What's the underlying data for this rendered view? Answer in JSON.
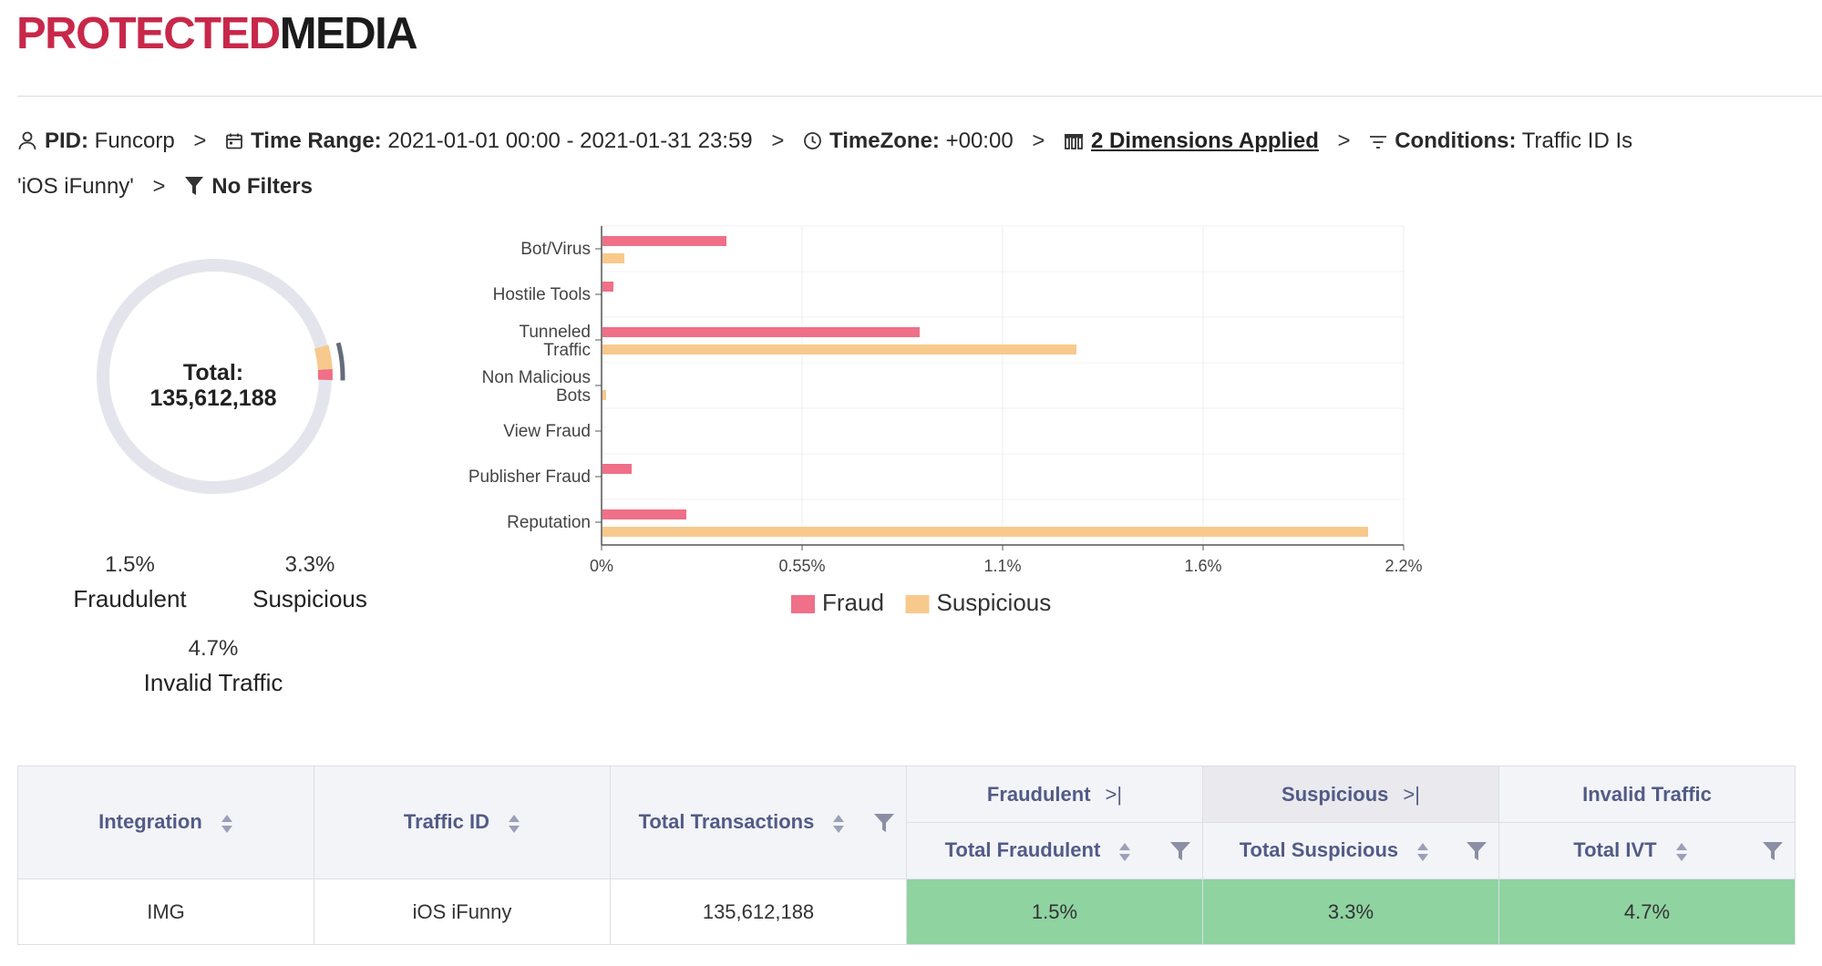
{
  "header": {
    "logo_part1": "PROTECTED",
    "logo_part2": "MEDIA"
  },
  "breadcrumb": {
    "pid_label": "PID:",
    "pid_value": "Funcorp",
    "time_label": "Time Range:",
    "time_value": "2021-01-01 00:00 - 2021-01-31 23:59",
    "tz_label": "TimeZone:",
    "tz_value": "+00:00",
    "dimensions": "2 Dimensions Applied",
    "conditions_label": "Conditions:",
    "conditions_value": "Traffic ID Is 'iOS iFunny'",
    "filters": "No Filters",
    "separator": ">"
  },
  "donut": {
    "total_label": "Total:",
    "total_value": "135,612,188",
    "fraudulent_pct": "1.5%",
    "fraudulent_label": "Fraudulent",
    "suspicious_pct": "3.3%",
    "suspicious_label": "Suspicious",
    "ivt_pct": "4.7%",
    "ivt_label": "Invalid Traffic",
    "fraud_fraction": 0.015,
    "suspicious_fraction": 0.033,
    "ivt_fraction": 0.047
  },
  "chart_data": {
    "type": "bar",
    "orientation": "horizontal",
    "categories": [
      "Bot/Virus",
      "Hostile Tools",
      "Tunneled Traffic",
      "Non Malicious Bots",
      "View Fraud",
      "Publisher Fraud",
      "Reputation"
    ],
    "series": [
      {
        "name": "Fraud",
        "color": "#ef7088",
        "values": [
          0.34,
          0.03,
          0.87,
          0,
          0,
          0.08,
          0.23
        ]
      },
      {
        "name": "Suspicious",
        "color": "#f8c98c",
        "values": [
          0.06,
          0,
          1.3,
          0.01,
          0,
          0,
          2.1
        ]
      }
    ],
    "xlim": [
      0,
      2.2
    ],
    "xticks": [
      "0%",
      "0.55%",
      "1.1%",
      "1.6%",
      "2.2%"
    ],
    "grid": true,
    "legend": "bottom"
  },
  "table": {
    "headers": {
      "integration": "Integration",
      "traffic_id": "Traffic ID",
      "total_transactions": "Total Transactions",
      "fraudulent_group": "Fraudulent",
      "suspicious_group": "Suspicious",
      "ivt_group": "Invalid Traffic",
      "total_fraudulent": "Total Fraudulent",
      "total_suspicious": "Total Suspicious",
      "total_ivt": "Total IVT",
      "expand": ">|"
    },
    "row": {
      "integration": "IMG",
      "traffic_id": "iOS iFunny",
      "total_transactions": "135,612,188",
      "total_fraudulent": "1.5%",
      "total_suspicious": "3.3%",
      "total_ivt": "4.7%"
    }
  },
  "colors": {
    "fraud": "#ef7088",
    "suspicious": "#f8c98c",
    "ivt_green": "#8fd3a1",
    "brand": "#c7284a"
  }
}
